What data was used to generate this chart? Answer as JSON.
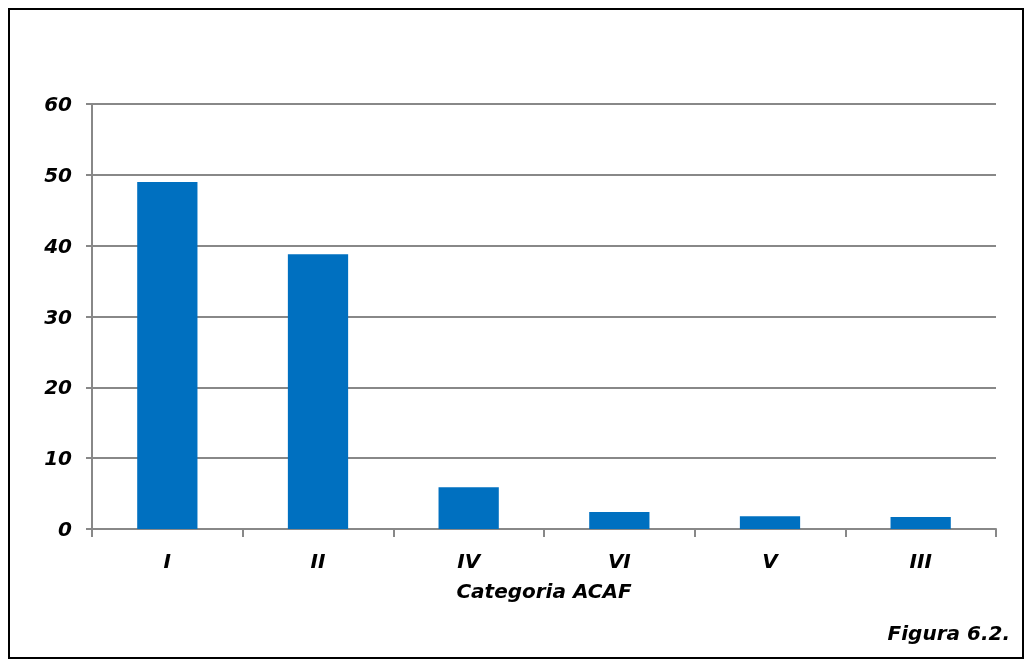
{
  "chart_data": {
    "type": "bar",
    "xlabel": "Categoria ACAF",
    "categories": [
      "I",
      "II",
      "IV",
      "VI",
      "V",
      "III"
    ],
    "values": [
      49,
      38.8,
      5.9,
      2.4,
      1.8,
      1.7
    ],
    "color": "#0070c0",
    "ylim": [
      0,
      60
    ],
    "yticks": [
      0,
      10,
      20,
      30,
      40,
      50,
      60
    ],
    "grid": "y",
    "annotations": [
      "Figura 6.2."
    ]
  }
}
